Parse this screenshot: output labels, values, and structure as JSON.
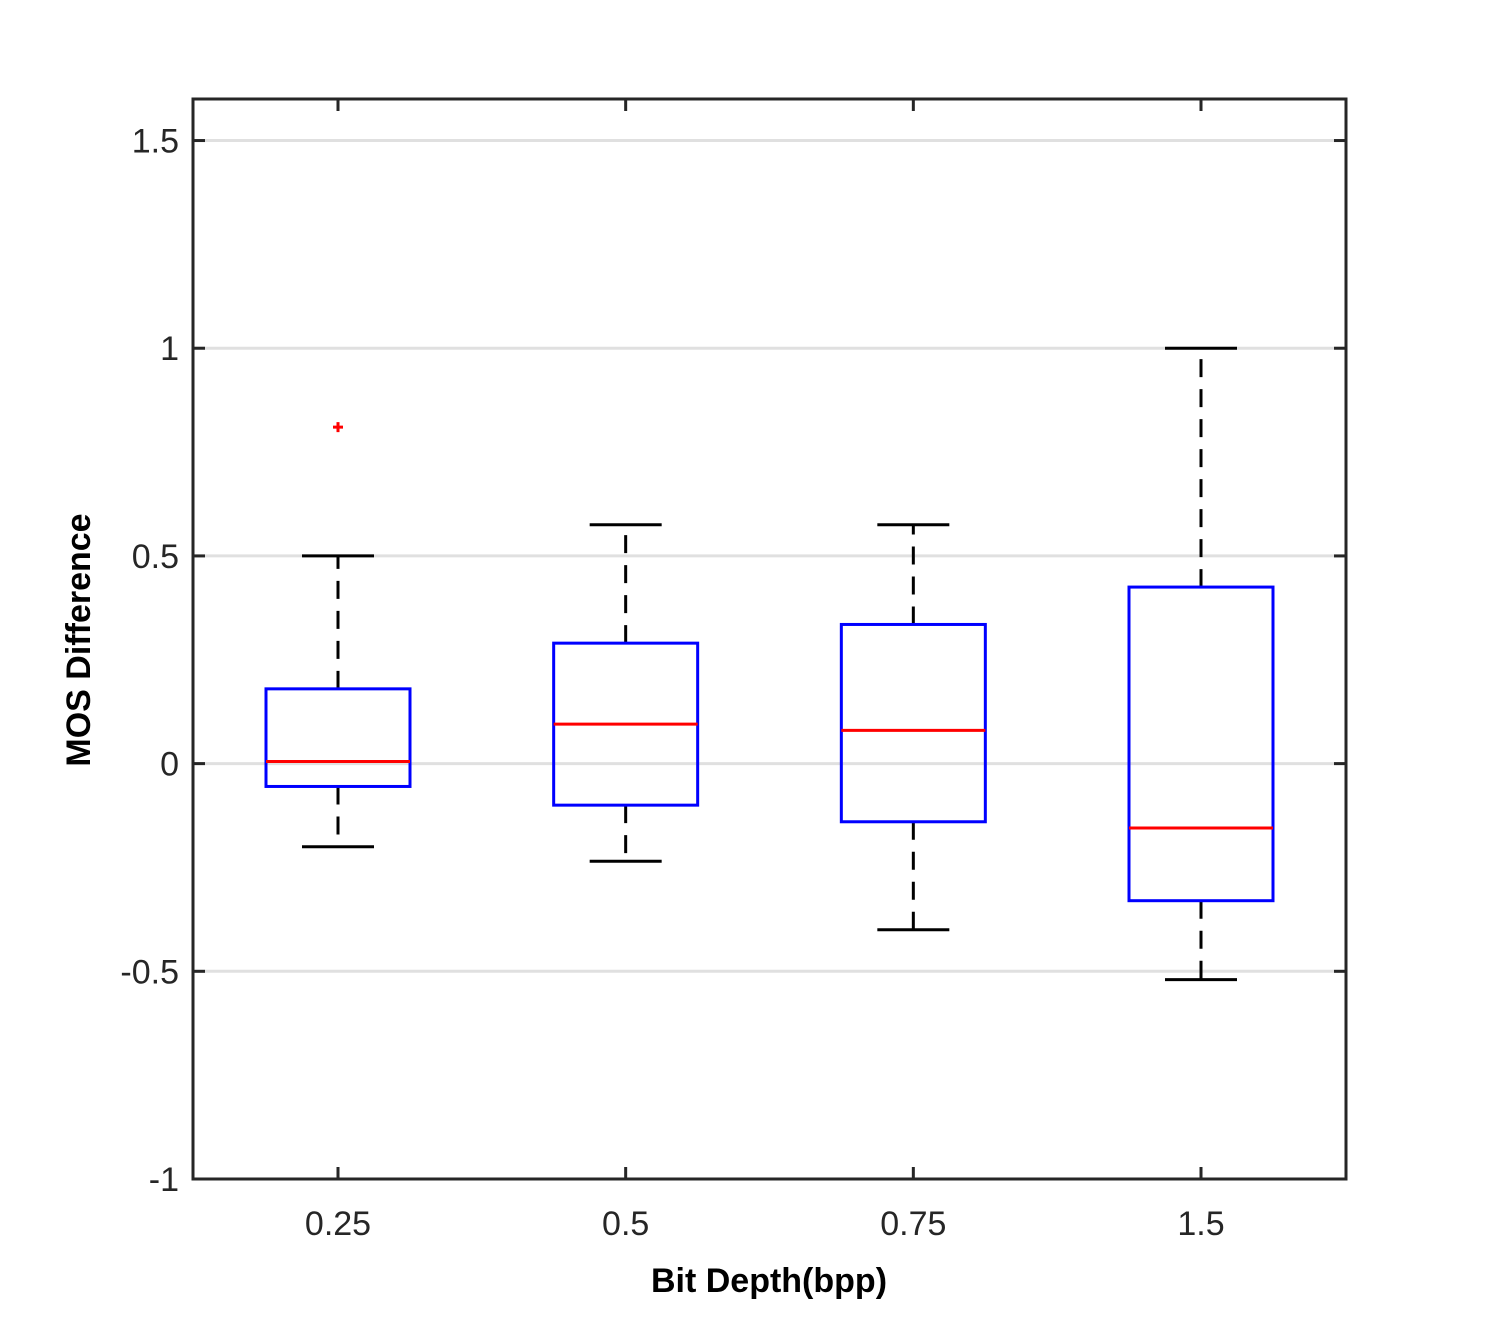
{
  "chart_data": {
    "type": "box",
    "title": "",
    "xlabel": "Bit Depth(bpp)",
    "ylabel": "MOS Difference",
    "ylim": [
      -1,
      1.6
    ],
    "yticks": [
      -1,
      -0.5,
      0,
      0.5,
      1,
      1.5
    ],
    "ytick_labels": [
      "-1",
      "-0.5",
      "0",
      "0.5",
      "1",
      "1.5"
    ],
    "grid": "horizontal",
    "categories": [
      "0.25",
      "0.5",
      "0.75",
      "1.5"
    ],
    "boxes": [
      {
        "category": "0.25",
        "whisker_low": -0.2,
        "q1": -0.055,
        "median": 0.005,
        "q3": 0.18,
        "whisker_high": 0.5,
        "outliers": [
          0.81
        ]
      },
      {
        "category": "0.5",
        "whisker_low": -0.235,
        "q1": -0.1,
        "median": 0.095,
        "q3": 0.29,
        "whisker_high": 0.575,
        "outliers": []
      },
      {
        "category": "0.75",
        "whisker_low": -0.4,
        "q1": -0.14,
        "median": 0.08,
        "q3": 0.335,
        "whisker_high": 0.575,
        "outliers": []
      },
      {
        "category": "1.5",
        "whisker_low": -0.52,
        "q1": -0.33,
        "median": -0.155,
        "q3": 0.425,
        "whisker_high": 1.0,
        "outliers": []
      }
    ],
    "colors": {
      "box": "#0000ff",
      "median": "#ff0000",
      "whisker": "#000000",
      "outlier": "#ff0000",
      "grid": "#e0e0e0",
      "axis": "#262626"
    }
  }
}
